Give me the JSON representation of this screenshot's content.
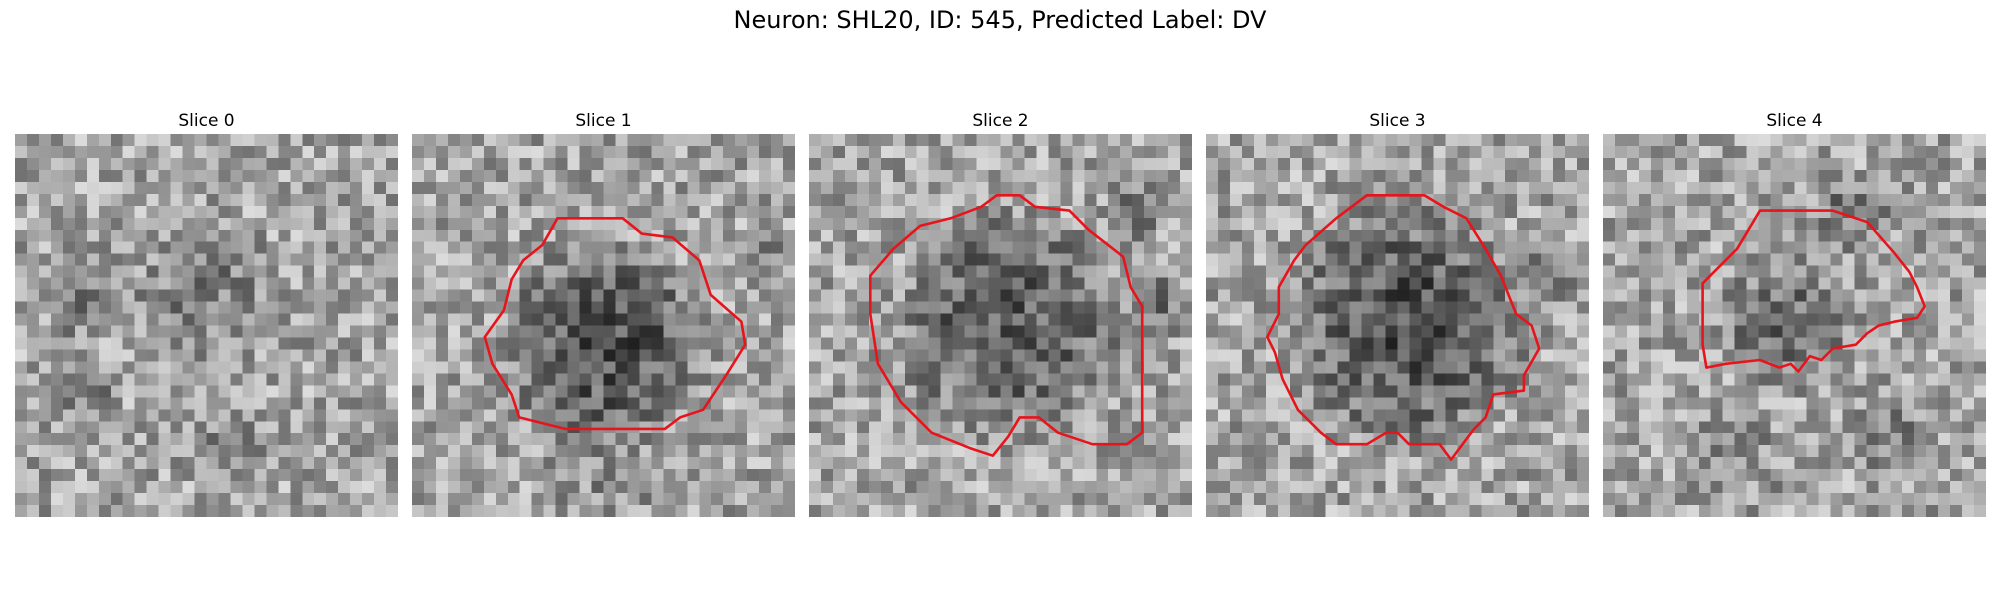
{
  "figure": {
    "title": "Neuron: SHL20, ID: 545, Predicted Label: DV"
  },
  "contour_color": "#e8141c",
  "panels": [
    {
      "title": "Slice 0",
      "has_contour": false
    },
    {
      "title": "Slice 1",
      "has_contour": true
    },
    {
      "title": "Slice 2",
      "has_contour": true
    },
    {
      "title": "Slice 3",
      "has_contour": true
    },
    {
      "title": "Slice 4",
      "has_contour": true
    }
  ]
}
